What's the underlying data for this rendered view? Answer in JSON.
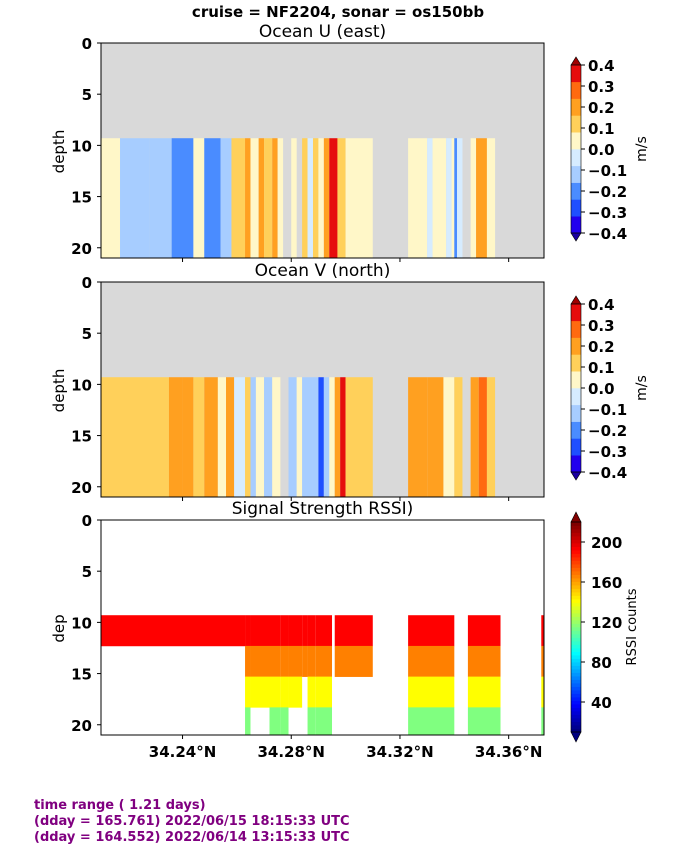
{
  "suptitle": "cruise = NF2204,  sonar = os150bb",
  "footer": {
    "line1": "time range ( 1.21 days)",
    "line2": "(dday = 165.761) 2022/06/15 18:15:33 UTC",
    "line3": "(dday = 164.552) 2022/06/14 13:15:33 UTC"
  },
  "chart_data": [
    {
      "type": "heatmap",
      "title": "Ocean U (east)",
      "ylabel": "depth",
      "xlabel": "",
      "x_ticks": [
        "34.24°N",
        "34.28°N",
        "34.32°N",
        "34.36°N"
      ],
      "y_ticks": [
        "0",
        "5",
        "10",
        "15",
        "20"
      ],
      "xlim": [
        34.21,
        34.373
      ],
      "ylim": [
        21,
        0
      ],
      "colorbar": {
        "label": "m/s",
        "ticks": [
          "0.4",
          "0.3",
          "0.2",
          "0.1",
          "0.0",
          "−0.1",
          "−0.2",
          "−0.3",
          "−0.4"
        ],
        "range": [
          -0.4,
          0.4
        ],
        "extend": "both",
        "colors": [
          "#2200ee",
          "#1f4fff",
          "#4a8cff",
          "#a7cdff",
          "#d6ecff",
          "#fff7c8",
          "#ffd05a",
          "#ffa020",
          "#ff6a10",
          "#e60d0d"
        ]
      },
      "columns": [
        {
          "x0": 34.21,
          "x1": 34.217,
          "value": 0.02
        },
        {
          "x0": 34.217,
          "x1": 34.228,
          "value": -0.08
        },
        {
          "x0": 34.228,
          "x1": 34.236,
          "value": -0.16
        },
        {
          "x0": 34.236,
          "x1": 34.244,
          "value": -0.18
        },
        {
          "x0": 34.244,
          "x1": 34.248,
          "value": 0.04
        },
        {
          "x0": 34.248,
          "x1": 34.254,
          "value": -0.24
        },
        {
          "x0": 34.254,
          "x1": 34.258,
          "value": -0.12
        },
        {
          "x0": 34.258,
          "x1": 34.263,
          "value": 0.08
        },
        {
          "x0": 34.263,
          "x1": 34.265,
          "value": 0.18
        },
        {
          "x0": 34.265,
          "x1": 34.268,
          "value": 0.05
        },
        {
          "x0": 34.268,
          "x1": 34.27,
          "value": 0.22
        },
        {
          "x0": 34.27,
          "x1": 34.273,
          "value": 0.12
        },
        {
          "x0": 34.273,
          "x1": 34.275,
          "value": 0.24
        },
        {
          "x0": 34.275,
          "x1": 34.277,
          "value": 0.03
        },
        {
          "x0": 34.28,
          "x1": 34.282,
          "value": 0.05
        },
        {
          "x0": 34.284,
          "x1": 34.286,
          "value": 0.14
        },
        {
          "x0": 34.286,
          "x1": 34.288,
          "value": -0.05
        },
        {
          "x0": 34.288,
          "x1": 34.29,
          "value": 0.12
        },
        {
          "x0": 34.29,
          "x1": 34.292,
          "value": 0.04
        },
        {
          "x0": 34.292,
          "x1": 34.294,
          "value": 0.22
        },
        {
          "x0": 34.294,
          "x1": 34.295,
          "value": 0.32
        },
        {
          "x0": 34.295,
          "x1": 34.297,
          "value": 0.38
        },
        {
          "x0": 34.297,
          "x1": 34.3,
          "value": 0.15
        },
        {
          "x0": 34.3,
          "x1": 34.31,
          "value": 0.05
        },
        {
          "x0": 34.323,
          "x1": 34.33,
          "value": 0.04
        },
        {
          "x0": 34.33,
          "x1": 34.332,
          "value": -0.04
        },
        {
          "x0": 34.332,
          "x1": 34.337,
          "value": 0.03
        },
        {
          "x0": 34.337,
          "x1": 34.339,
          "value": -0.05
        },
        {
          "x0": 34.339,
          "x1": 34.34,
          "value": 0.04
        },
        {
          "x0": 34.34,
          "x1": 34.341,
          "value": -0.22
        },
        {
          "x0": 34.341,
          "x1": 34.343,
          "value": -0.06
        },
        {
          "x0": 34.346,
          "x1": 34.348,
          "value": 0.05
        },
        {
          "x0": 34.348,
          "x1": 34.352,
          "value": 0.18
        },
        {
          "x0": 34.352,
          "x1": 34.355,
          "value": 0.06
        }
      ],
      "data_depth": [
        9.3,
        21
      ]
    },
    {
      "type": "heatmap",
      "title": "Ocean V (north)",
      "ylabel": "depth",
      "xlabel": "",
      "x_ticks": [
        "34.24°N",
        "34.28°N",
        "34.32°N",
        "34.36°N"
      ],
      "y_ticks": [
        "0",
        "5",
        "10",
        "15",
        "20"
      ],
      "xlim": [
        34.21,
        34.373
      ],
      "ylim": [
        21,
        0
      ],
      "colorbar": {
        "label": "m/s",
        "ticks": [
          "0.4",
          "0.3",
          "0.2",
          "0.1",
          "0.0",
          "−0.1",
          "−0.2",
          "−0.3",
          "−0.4"
        ],
        "range": [
          -0.4,
          0.4
        ],
        "extend": "both",
        "colors": [
          "#2200ee",
          "#1f4fff",
          "#4a8cff",
          "#a7cdff",
          "#d6ecff",
          "#fff7c8",
          "#ffd05a",
          "#ffa020",
          "#ff6a10",
          "#e60d0d"
        ]
      },
      "columns": [
        {
          "x0": 34.21,
          "x1": 34.235,
          "value": 0.14
        },
        {
          "x0": 34.235,
          "x1": 34.24,
          "value": 0.18
        },
        {
          "x0": 34.24,
          "x1": 34.244,
          "value": 0.24
        },
        {
          "x0": 34.244,
          "x1": 34.248,
          "value": 0.13
        },
        {
          "x0": 34.248,
          "x1": 34.253,
          "value": 0.22
        },
        {
          "x0": 34.253,
          "x1": 34.256,
          "value": 0.04
        },
        {
          "x0": 34.256,
          "x1": 34.259,
          "value": 0.16
        },
        {
          "x0": 34.259,
          "x1": 34.263,
          "value": -0.04
        },
        {
          "x0": 34.263,
          "x1": 34.265,
          "value": 0.12
        },
        {
          "x0": 34.265,
          "x1": 34.267,
          "value": -0.12
        },
        {
          "x0": 34.267,
          "x1": 34.27,
          "value": 0.04
        },
        {
          "x0": 34.27,
          "x1": 34.273,
          "value": -0.08
        },
        {
          "x0": 34.273,
          "x1": 34.276,
          "value": 0.03
        },
        {
          "x0": 34.279,
          "x1": 34.282,
          "value": -0.14
        },
        {
          "x0": 34.282,
          "x1": 34.284,
          "value": 0.02
        },
        {
          "x0": 34.284,
          "x1": 34.288,
          "value": -0.08
        },
        {
          "x0": 34.288,
          "x1": 34.29,
          "value": -0.15
        },
        {
          "x0": 34.29,
          "x1": 34.292,
          "value": -0.28
        },
        {
          "x0": 34.292,
          "x1": 34.294,
          "value": -0.08
        },
        {
          "x0": 34.294,
          "x1": 34.296,
          "value": 0.05
        },
        {
          "x0": 34.296,
          "x1": 34.298,
          "value": 0.22
        },
        {
          "x0": 34.298,
          "x1": 34.3,
          "value": 0.33
        },
        {
          "x0": 34.3,
          "x1": 34.31,
          "value": 0.12
        },
        {
          "x0": 34.323,
          "x1": 34.33,
          "value": 0.24
        },
        {
          "x0": 34.33,
          "x1": 34.336,
          "value": 0.16
        },
        {
          "x0": 34.336,
          "x1": 34.34,
          "value": 0.06
        },
        {
          "x0": 34.34,
          "x1": 34.343,
          "value": 0.14
        },
        {
          "x0": 34.346,
          "x1": 34.349,
          "value": 0.18
        },
        {
          "x0": 34.349,
          "x1": 34.352,
          "value": 0.26
        },
        {
          "x0": 34.352,
          "x1": 34.355,
          "value": 0.14
        }
      ],
      "data_depth": [
        9.3,
        21
      ]
    },
    {
      "type": "heatmap",
      "title": "Signal Strength RSSI)",
      "ylabel": "dep",
      "xlabel": "",
      "x_ticks": [
        "34.24°N",
        "34.28°N",
        "34.32°N",
        "34.36°N"
      ],
      "y_ticks": [
        "0",
        "5",
        "10",
        "15",
        "20"
      ],
      "xlim": [
        34.21,
        34.373
      ],
      "ylim": [
        21,
        0
      ],
      "colorbar": {
        "label": "RSSI counts",
        "ticks": [
          "200",
          "160",
          "120",
          "80",
          "40"
        ],
        "range": [
          10,
          220
        ],
        "colors": [
          "#000080",
          "#0000ff",
          "#0080ff",
          "#00ffff",
          "#80ff80",
          "#ffff00",
          "#ff8000",
          "#ff0000",
          "#800000"
        ]
      },
      "bins": [
        {
          "y0": 9.3,
          "y1": 12.3,
          "value": 190
        },
        {
          "y0": 12.3,
          "y1": 15.3,
          "value": 172
        },
        {
          "y0": 15.3,
          "y1": 18.3,
          "value": 148
        },
        {
          "y0": 18.3,
          "y1": 21.0,
          "value": 125
        }
      ],
      "segments": [
        {
          "x0": 34.21,
          "x1": 34.263,
          "gap_from": 12.3
        },
        {
          "x0": 34.263,
          "x1": 34.265,
          "gap_from": 21.0
        },
        {
          "x0": 34.265,
          "x1": 34.272,
          "gap_from": 18.3
        },
        {
          "x0": 34.272,
          "x1": 34.276,
          "gap_from": 21.0
        },
        {
          "x0": 34.276,
          "x1": 34.279,
          "gap_from": 21.0
        },
        {
          "x0": 34.279,
          "x1": 34.284,
          "gap_from": 18.3
        },
        {
          "x0": 34.284,
          "x1": 34.286,
          "gap_from": 15.3
        },
        {
          "x0": 34.286,
          "x1": 34.289,
          "gap_from": 21.0
        },
        {
          "x0": 34.289,
          "x1": 34.295,
          "gap_from": 21.0
        },
        {
          "x0": 34.296,
          "x1": 34.31,
          "gap_from": 15.3
        },
        {
          "x0": 34.323,
          "x1": 34.34,
          "gap_from": 21.0
        },
        {
          "x0": 34.345,
          "x1": 34.357,
          "gap_from": 21.0
        },
        {
          "x0": 34.372,
          "x1": 34.373,
          "gap_from": 21.0
        }
      ],
      "data_depth": [
        9.3,
        21
      ]
    }
  ]
}
